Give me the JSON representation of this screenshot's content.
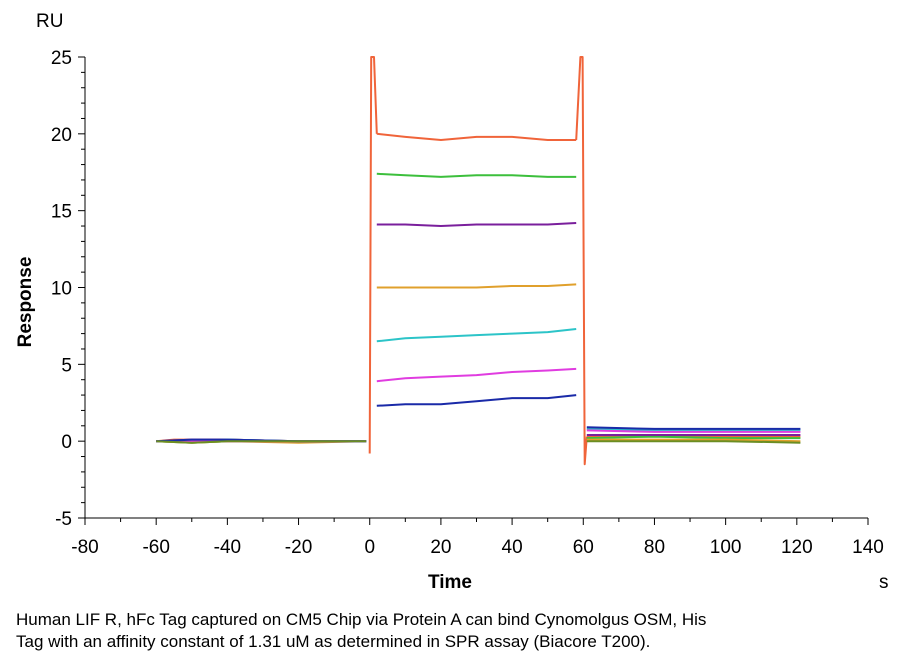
{
  "chart_data": {
    "type": "line",
    "title": "",
    "xlabel": "Time",
    "ylabel": "Response",
    "x_unit": "s",
    "y_unit": "RU",
    "xlim": [
      -80,
      140
    ],
    "ylim": [
      -5,
      25
    ],
    "x_ticks": [
      -80,
      -60,
      -40,
      -20,
      0,
      20,
      40,
      60,
      80,
      100,
      120,
      140
    ],
    "y_ticks": [
      -5,
      0,
      5,
      10,
      15,
      20,
      25
    ],
    "grid": false,
    "legend": "none",
    "series": [
      {
        "color": "#f0643a",
        "baseline": [
          [
            -60,
            0
          ],
          [
            -55,
            0.1
          ],
          [
            -40,
            0.1
          ],
          [
            -20,
            0
          ],
          [
            -1,
            0
          ]
        ],
        "spike_start": 25,
        "assoc": [
          [
            2,
            20.0
          ],
          [
            10,
            19.8
          ],
          [
            20,
            19.6
          ],
          [
            30,
            19.8
          ],
          [
            40,
            19.8
          ],
          [
            50,
            19.6
          ],
          [
            58,
            19.6
          ]
        ],
        "spike_end": 25,
        "dissoc": [
          [
            61,
            0.3
          ],
          [
            80,
            0.3
          ],
          [
            100,
            0.3
          ],
          [
            121,
            0.3
          ]
        ]
      },
      {
        "color": "#3cbf3c",
        "baseline": [
          [
            -60,
            0
          ],
          [
            -50,
            -0.1
          ],
          [
            -40,
            0
          ],
          [
            -20,
            0
          ],
          [
            -1,
            0
          ]
        ],
        "assoc": [
          [
            2,
            17.4
          ],
          [
            10,
            17.3
          ],
          [
            20,
            17.2
          ],
          [
            30,
            17.3
          ],
          [
            40,
            17.3
          ],
          [
            50,
            17.2
          ],
          [
            58,
            17.2
          ]
        ],
        "dissoc": [
          [
            61,
            0.2
          ],
          [
            80,
            0.3
          ],
          [
            100,
            0.2
          ],
          [
            121,
            0.2
          ]
        ]
      },
      {
        "color": "#7a1f9c",
        "baseline": [
          [
            -60,
            0
          ],
          [
            -50,
            0.1
          ],
          [
            -40,
            0.1
          ],
          [
            -20,
            0
          ],
          [
            -1,
            0
          ]
        ],
        "assoc": [
          [
            2,
            14.1
          ],
          [
            10,
            14.1
          ],
          [
            20,
            14.0
          ],
          [
            30,
            14.1
          ],
          [
            40,
            14.1
          ],
          [
            50,
            14.1
          ],
          [
            58,
            14.2
          ]
        ],
        "dissoc": [
          [
            61,
            0.4
          ],
          [
            80,
            0.4
          ],
          [
            100,
            0.4
          ],
          [
            121,
            0.4
          ]
        ]
      },
      {
        "color": "#e0a02c",
        "baseline": [
          [
            -60,
            0
          ],
          [
            -50,
            -0.1
          ],
          [
            -40,
            0
          ],
          [
            -20,
            -0.1
          ],
          [
            -1,
            0
          ]
        ],
        "assoc": [
          [
            2,
            10.0
          ],
          [
            10,
            10.0
          ],
          [
            20,
            10.0
          ],
          [
            30,
            10.0
          ],
          [
            40,
            10.1
          ],
          [
            50,
            10.1
          ],
          [
            58,
            10.2
          ]
        ],
        "dissoc": [
          [
            61,
            0.1
          ],
          [
            80,
            0.1
          ],
          [
            100,
            0.1
          ],
          [
            121,
            0.0
          ]
        ]
      },
      {
        "color": "#2cc4c8",
        "baseline": [
          [
            -60,
            0
          ],
          [
            -50,
            0
          ],
          [
            -40,
            0.1
          ],
          [
            -20,
            0
          ],
          [
            -1,
            0
          ]
        ],
        "assoc": [
          [
            2,
            6.5
          ],
          [
            10,
            6.7
          ],
          [
            20,
            6.8
          ],
          [
            30,
            6.9
          ],
          [
            40,
            7.0
          ],
          [
            50,
            7.1
          ],
          [
            58,
            7.3
          ]
        ],
        "dissoc": [
          [
            61,
            0.8
          ],
          [
            80,
            0.7
          ],
          [
            100,
            0.7
          ],
          [
            121,
            0.7
          ]
        ]
      },
      {
        "color": "#e03ce0",
        "baseline": [
          [
            -60,
            0
          ],
          [
            -50,
            0
          ],
          [
            -40,
            0
          ],
          [
            -20,
            0
          ],
          [
            -1,
            0
          ]
        ],
        "assoc": [
          [
            2,
            3.9
          ],
          [
            10,
            4.1
          ],
          [
            20,
            4.2
          ],
          [
            30,
            4.3
          ],
          [
            40,
            4.5
          ],
          [
            50,
            4.6
          ],
          [
            58,
            4.7
          ]
        ],
        "dissoc": [
          [
            61,
            0.7
          ],
          [
            80,
            0.6
          ],
          [
            100,
            0.6
          ],
          [
            121,
            0.6
          ]
        ]
      },
      {
        "color": "#1a2aa8",
        "baseline": [
          [
            -60,
            0
          ],
          [
            -50,
            0.1
          ],
          [
            -40,
            0.1
          ],
          [
            -20,
            0
          ],
          [
            -1,
            0
          ]
        ],
        "assoc": [
          [
            2,
            2.3
          ],
          [
            10,
            2.4
          ],
          [
            20,
            2.4
          ],
          [
            30,
            2.6
          ],
          [
            40,
            2.8
          ],
          [
            50,
            2.8
          ],
          [
            58,
            3.0
          ]
        ],
        "dissoc": [
          [
            61,
            0.9
          ],
          [
            80,
            0.8
          ],
          [
            100,
            0.8
          ],
          [
            121,
            0.8
          ]
        ]
      },
      {
        "color": "#6b8e23",
        "baseline": [
          [
            -60,
            0
          ],
          [
            -50,
            -0.1
          ],
          [
            -40,
            0
          ],
          [
            -20,
            0
          ],
          [
            -1,
            0
          ]
        ],
        "assoc": [],
        "dissoc": [
          [
            61,
            0.0
          ],
          [
            80,
            0.0
          ],
          [
            100,
            0.0
          ],
          [
            121,
            -0.1
          ]
        ]
      }
    ]
  },
  "caption_lines": [
    "Human LIF R, hFc Tag captured on CM5 Chip via Protein A can bind Cynomolgus OSM, His",
    "Tag with an affinity constant of 1.31 uM as determined in SPR assay (Biacore T200)."
  ]
}
